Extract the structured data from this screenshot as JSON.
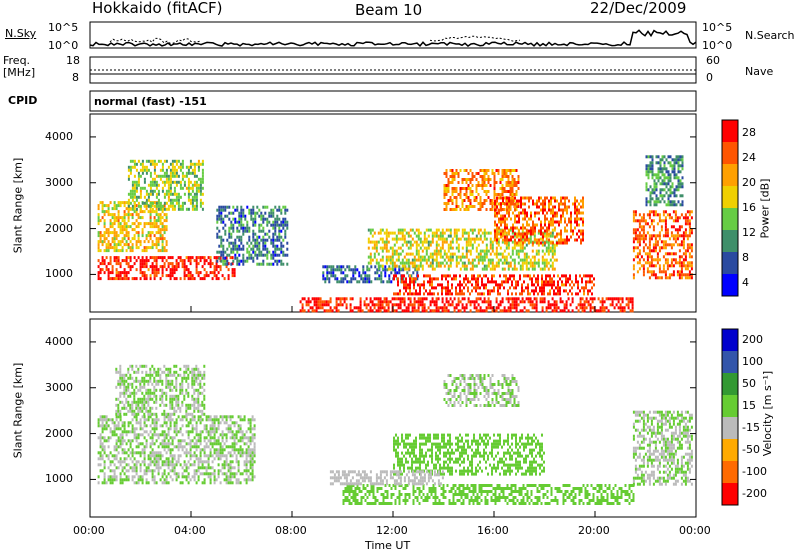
{
  "header": {
    "station": "Hokkaido (fitACF)",
    "beam": "Beam 10",
    "date": "22/Dec/2009"
  },
  "noise_panel": {
    "left_label": "N.Sky",
    "right_label": "N.Search",
    "tick_top": "10^5",
    "tick_bottom": "10^0"
  },
  "freq_panel": {
    "left_label_1": "Freq.",
    "left_label_2": "[MHz]",
    "left_ticks": [
      "18",
      "8"
    ],
    "right_label": "Nave",
    "right_ticks": [
      "60",
      "0"
    ]
  },
  "cpid_panel": {
    "label": "CPID",
    "mode_text": "normal (fast) -151"
  },
  "power_panel": {
    "ylabel": "Slant Range [km]",
    "yticks": [
      "4000",
      "3000",
      "2000",
      "1000"
    ],
    "colorbar_label": "Power [dB]",
    "colorbar_ticks": [
      "28",
      "24",
      "20",
      "16",
      "12",
      "8",
      "4"
    ]
  },
  "velocity_panel": {
    "ylabel": "Slant Range [km]",
    "yticks": [
      "4000",
      "3000",
      "2000",
      "1000"
    ],
    "colorbar_label": "Velocity [m s⁻¹]",
    "colorbar_ticks": [
      "200",
      "100",
      "50",
      "15",
      "-15",
      "-50",
      "-100",
      "-200"
    ]
  },
  "x_axis": {
    "label": "Time UT",
    "ticks": [
      "00:00",
      "04:00",
      "08:00",
      "12:00",
      "16:00",
      "20:00",
      "00:00"
    ]
  },
  "chart_data": {
    "type": "heatmap",
    "title": "Hokkaido (fitACF) Beam 10 22/Dec/2009",
    "x_range_hours": [
      0,
      24
    ],
    "y_range_km": [
      180,
      4500
    ],
    "power_scale_db": [
      0,
      30
    ],
    "velocity_scale_ms": [
      -250,
      250
    ],
    "power_colors": [
      "#0000ff",
      "#2a4aa0",
      "#3f8f6a",
      "#66cc44",
      "#f0d000",
      "#ffa000",
      "#ff5500",
      "#ff0000"
    ],
    "velocity_colors": [
      "#ff0000",
      "#ff6a00",
      "#ffaa00",
      "#bbbbbb",
      "#66cc33",
      "#339933",
      "#3355aa",
      "#0000cc"
    ],
    "power_regions": [
      {
        "t0": 0.3,
        "t1": 5.7,
        "r0": 900,
        "r1": 1400,
        "power": 27
      },
      {
        "t0": 0.3,
        "t1": 3.0,
        "r0": 1500,
        "r1": 2600,
        "power": 18
      },
      {
        "t0": 1.5,
        "t1": 4.5,
        "r0": 2400,
        "r1": 3500,
        "power": 14
      },
      {
        "t0": 5.0,
        "t1": 7.8,
        "r0": 1200,
        "r1": 2500,
        "power": 8
      },
      {
        "t0": 8.3,
        "t1": 21.5,
        "r0": 200,
        "r1": 500,
        "power": 28
      },
      {
        "t0": 9.2,
        "t1": 13.0,
        "r0": 850,
        "r1": 1200,
        "power": 6
      },
      {
        "t0": 12.0,
        "t1": 20.0,
        "r0": 600,
        "r1": 1000,
        "power": 27
      },
      {
        "t0": 11.0,
        "t1": 18.5,
        "r0": 1100,
        "r1": 2000,
        "power": 16
      },
      {
        "t0": 14.0,
        "t1": 17.0,
        "r0": 2400,
        "r1": 3300,
        "power": 22
      },
      {
        "t0": 16.0,
        "t1": 19.5,
        "r0": 1700,
        "r1": 2700,
        "power": 24
      },
      {
        "t0": 21.5,
        "t1": 23.8,
        "r0": 900,
        "r1": 2400,
        "power": 24
      },
      {
        "t0": 22.0,
        "t1": 23.5,
        "r0": 2500,
        "r1": 3600,
        "power": 10
      }
    ],
    "velocity_regions": [
      {
        "t0": 0.3,
        "t1": 6.5,
        "r0": 900,
        "r1": 2400,
        "velocity": 0
      },
      {
        "t0": 1.0,
        "t1": 4.5,
        "r0": 2400,
        "r1": 3500,
        "velocity": 0
      },
      {
        "t0": 10.0,
        "t1": 21.5,
        "r0": 500,
        "r1": 900,
        "velocity": 40
      },
      {
        "t0": 12.0,
        "t1": 18.0,
        "r0": 1100,
        "r1": 2000,
        "velocity": 40
      },
      {
        "t0": 9.5,
        "t1": 14.0,
        "r0": 900,
        "r1": 1200,
        "velocity": -40
      },
      {
        "t0": 14.0,
        "t1": 17.0,
        "r0": 2600,
        "r1": 3300,
        "velocity": 0
      },
      {
        "t0": 21.5,
        "t1": 23.8,
        "r0": 900,
        "r1": 2500,
        "velocity": 0
      }
    ]
  }
}
